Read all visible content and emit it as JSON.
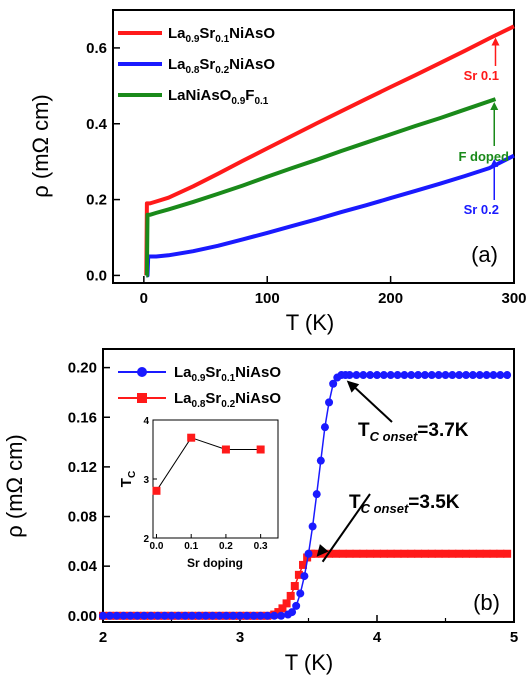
{
  "chart_data": [
    {
      "type": "line",
      "panel_label": "(a)",
      "xlabel": "T (K)",
      "ylabel": "ρ (mΩ cm)",
      "xlim": [
        -25,
        300
      ],
      "ylim": [
        -0.02,
        0.7
      ],
      "xticks": [
        "0",
        "100",
        "200",
        "300"
      ],
      "yticks": [
        "0.0",
        "0.2",
        "0.4",
        "0.6"
      ],
      "legend_placement": "top-left",
      "series": [
        {
          "name_parts": [
            "La",
            "0.9",
            "Sr",
            "0.1",
            "NiAsO",
            ""
          ],
          "color": "#ff1a1a",
          "x": [
            2,
            2.5,
            3,
            5,
            10,
            20,
            40,
            60,
            80,
            100,
            120,
            140,
            160,
            180,
            200,
            220,
            240,
            260,
            280,
            300
          ],
          "y": [
            0.0,
            0.19,
            0.19,
            0.19,
            0.195,
            0.205,
            0.235,
            0.268,
            0.302,
            0.335,
            0.368,
            0.401,
            0.433,
            0.465,
            0.497,
            0.528,
            0.56,
            0.592,
            0.625,
            0.657
          ]
        },
        {
          "name_parts": [
            "La",
            "0.8",
            "Sr",
            "0.2",
            "NiAsO",
            ""
          ],
          "color": "#1a1aff",
          "x": [
            2,
            3,
            3.5,
            5,
            10,
            20,
            40,
            60,
            80,
            100,
            120,
            140,
            160,
            180,
            200,
            220,
            240,
            260,
            280,
            300
          ],
          "y": [
            0.0,
            0.0,
            0.05,
            0.05,
            0.05,
            0.053,
            0.064,
            0.078,
            0.095,
            0.112,
            0.13,
            0.148,
            0.167,
            0.185,
            0.204,
            0.223,
            0.242,
            0.262,
            0.283,
            0.316
          ]
        },
        {
          "name_parts": [
            "LaNiAsO",
            "",
            "",
            "0.9",
            "F",
            "0.1"
          ],
          "color": "#1a8a1a",
          "x": [
            2,
            2.5,
            3,
            5,
            10,
            20,
            40,
            60,
            80,
            100,
            120,
            140,
            160,
            180,
            200,
            220,
            240,
            260,
            285
          ],
          "y": [
            0.0,
            0.0,
            0.16,
            0.16,
            0.165,
            0.174,
            0.194,
            0.215,
            0.237,
            0.26,
            0.283,
            0.305,
            0.328,
            0.35,
            0.372,
            0.394,
            0.415,
            0.437,
            0.465
          ]
        }
      ],
      "annotations": [
        {
          "text": "Sr 0.1",
          "color": "#ff1a1a",
          "arrow_x": 285,
          "arrow_y": 0.63
        },
        {
          "text": "F doped",
          "color": "#1a8a1a",
          "arrow_x": 284,
          "arrow_y": 0.46
        },
        {
          "text": "Sr 0.2",
          "color": "#1a1aff",
          "arrow_x": 284,
          "arrow_y": 0.31
        }
      ]
    },
    {
      "type": "line",
      "panel_label": "(b)",
      "xlabel": "T (K)",
      "ylabel": "ρ (mΩ cm)",
      "xlim": [
        2,
        5
      ],
      "ylim": [
        -0.005,
        0.215
      ],
      "xticks": [
        "2",
        "3",
        "4",
        "5"
      ],
      "yticks": [
        "0.00",
        "0.04",
        "0.08",
        "0.12",
        "0.16",
        "0.20"
      ],
      "legend_placement": "top-left",
      "series": [
        {
          "name_parts": [
            "La",
            "0.9",
            "Sr",
            "0.1",
            "NiAsO"
          ],
          "color": "#1a1aff",
          "marker": "circle",
          "x": [
            2.0,
            2.05,
            2.1,
            2.15,
            2.2,
            2.25,
            2.3,
            2.35,
            2.4,
            2.45,
            2.5,
            2.55,
            2.6,
            2.65,
            2.7,
            2.75,
            2.8,
            2.85,
            2.9,
            2.95,
            3.0,
            3.05,
            3.1,
            3.15,
            3.2,
            3.25,
            3.3,
            3.35,
            3.38,
            3.41,
            3.44,
            3.47,
            3.5,
            3.53,
            3.56,
            3.59,
            3.62,
            3.65,
            3.68,
            3.71,
            3.74,
            3.77,
            3.8,
            3.85,
            3.9,
            3.95,
            4.0,
            4.05,
            4.1,
            4.15,
            4.2,
            4.25,
            4.3,
            4.35,
            4.4,
            4.45,
            4.5,
            4.55,
            4.6,
            4.65,
            4.7,
            4.75,
            4.8,
            4.85,
            4.9,
            4.95
          ],
          "y": [
            0,
            0,
            0,
            0,
            0,
            0,
            0,
            0,
            0,
            0,
            0,
            0,
            0,
            0,
            0,
            0,
            0,
            0,
            0,
            0,
            0,
            0,
            0,
            0,
            0,
            0,
            0,
            0.001,
            0.003,
            0.008,
            0.018,
            0.032,
            0.05,
            0.072,
            0.098,
            0.125,
            0.152,
            0.172,
            0.187,
            0.192,
            0.194,
            0.194,
            0.194,
            0.194,
            0.194,
            0.194,
            0.194,
            0.194,
            0.194,
            0.194,
            0.194,
            0.194,
            0.194,
            0.194,
            0.194,
            0.194,
            0.194,
            0.194,
            0.194,
            0.194,
            0.194,
            0.194,
            0.194,
            0.194,
            0.194,
            0.194
          ]
        },
        {
          "name_parts": [
            "La",
            "0.8",
            "Sr",
            "0.2",
            "NiAsO"
          ],
          "color": "#ff1a1a",
          "marker": "square",
          "x": [
            2.0,
            2.05,
            2.1,
            2.15,
            2.2,
            2.25,
            2.3,
            2.35,
            2.4,
            2.45,
            2.5,
            2.55,
            2.6,
            2.65,
            2.7,
            2.75,
            2.8,
            2.85,
            2.9,
            2.95,
            3.0,
            3.05,
            3.1,
            3.15,
            3.2,
            3.25,
            3.28,
            3.31,
            3.34,
            3.37,
            3.4,
            3.43,
            3.46,
            3.49,
            3.52,
            3.55,
            3.6,
            3.65,
            3.7,
            3.75,
            3.8,
            3.85,
            3.9,
            3.95,
            4.0,
            4.05,
            4.1,
            4.15,
            4.2,
            4.25,
            4.3,
            4.35,
            4.4,
            4.45,
            4.5,
            4.55,
            4.6,
            4.65,
            4.7,
            4.75,
            4.8,
            4.85,
            4.9,
            4.95
          ],
          "y": [
            0,
            0,
            0,
            0,
            0,
            0,
            0,
            0,
            0,
            0,
            0,
            0,
            0,
            0,
            0,
            0,
            0,
            0,
            0,
            0,
            0,
            0,
            0,
            0,
            0,
            0.001,
            0.003,
            0.006,
            0.01,
            0.016,
            0.024,
            0.033,
            0.041,
            0.047,
            0.05,
            0.05,
            0.05,
            0.05,
            0.05,
            0.05,
            0.05,
            0.05,
            0.05,
            0.05,
            0.05,
            0.05,
            0.05,
            0.05,
            0.05,
            0.05,
            0.05,
            0.05,
            0.05,
            0.05,
            0.05,
            0.05,
            0.05,
            0.05,
            0.05,
            0.05,
            0.05,
            0.05,
            0.05,
            0.05
          ]
        }
      ],
      "annotations": [
        {
          "text_main": "T",
          "text_sub": "C onset",
          "text_tail": "=3.7K",
          "arrow_x": 3.75,
          "arrow_y": 0.192
        },
        {
          "text_main": "T",
          "text_sub": "C onset",
          "text_tail": "=3.5K",
          "arrow_x": 3.53,
          "arrow_y": 0.05
        }
      ],
      "inset": {
        "type": "line",
        "xlabel": "Sr doping",
        "ylabel_main": "T",
        "ylabel_sub": "C",
        "xlim": [
          -0.01,
          0.35
        ],
        "ylim": [
          2,
          4
        ],
        "xticks": [
          "0.0",
          "0.1",
          "0.2",
          "0.3"
        ],
        "yticks": [
          "2",
          "3",
          "4"
        ],
        "color": "#ff1a1a",
        "marker": "square",
        "x": [
          0.0,
          0.1,
          0.2,
          0.3
        ],
        "y": [
          2.8,
          3.7,
          3.5,
          3.5
        ]
      }
    }
  ]
}
